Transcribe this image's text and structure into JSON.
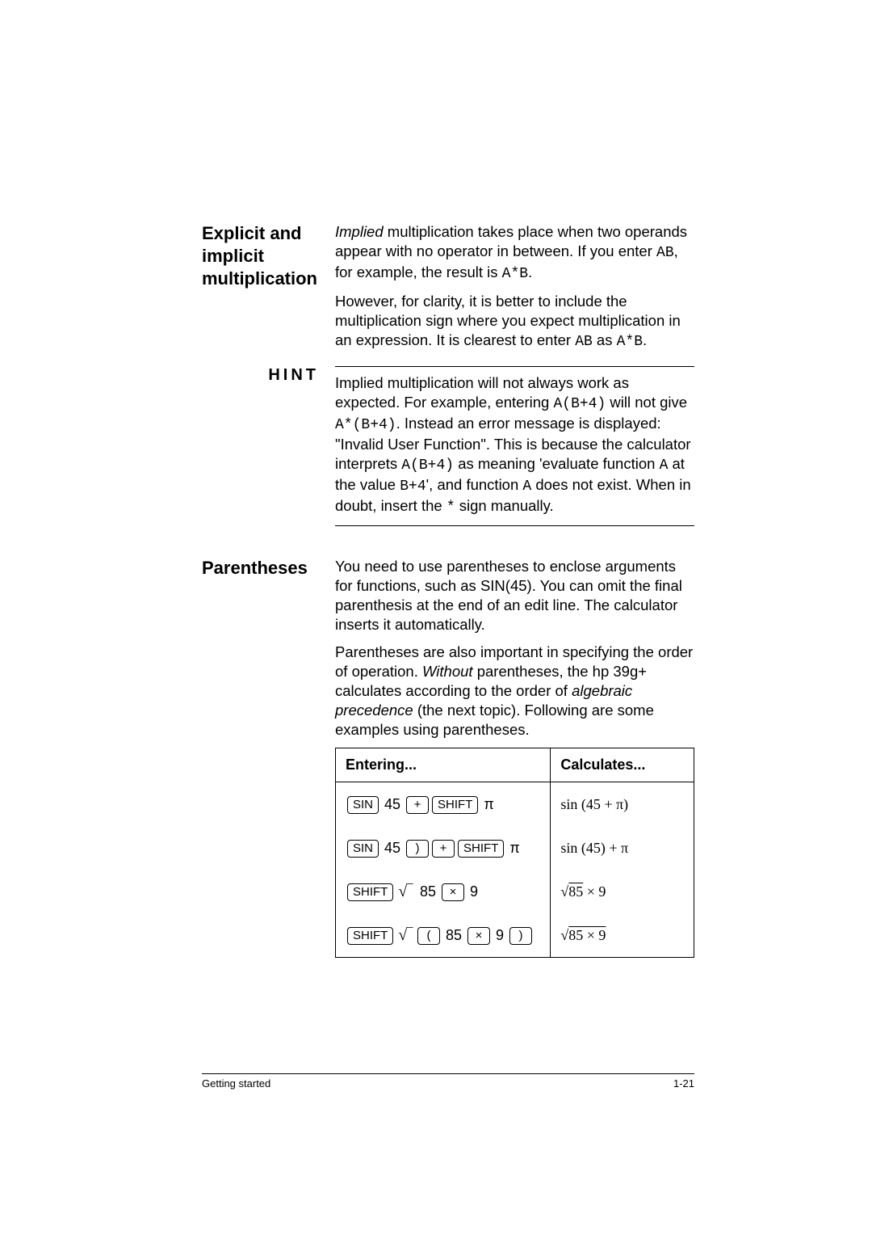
{
  "sections": {
    "explicit": {
      "sidebar": "Explicit and implicit multiplication",
      "para1_prefix_italic": "Implied",
      "para1_rest": " multiplication takes place when two operands appear with no operator in between. If you enter ",
      "para1_ab": "AB",
      "para1_tail": ", for example, the result is ",
      "para1_astarb": "A*B",
      "para1_period": ".",
      "para2_a": "However, for clarity, it is better to include the multiplication sign where you expect multiplication in an expression. It is clearest to enter ",
      "para2_ab": "AB",
      "para2_as": " as ",
      "para2_astarb": "A*B",
      "para2_period": "."
    },
    "hint": {
      "sidebar": "HINT",
      "t1": "Implied multiplication will not always work as expected. For example, entering ",
      "c1": "A(B+4)",
      "t2": " will not give ",
      "c2": "A*(B+4)",
      "t3": ". Instead an error message is displayed: \"Invalid User Function\". This is because the calculator interprets ",
      "c3": "A(B+4)",
      "t4": " as meaning 'evaluate function ",
      "c4": "A",
      "t5": " at the value ",
      "c5": "B+4",
      "t6": "', and function ",
      "c6": "A",
      "t7": " does not exist. When in doubt, insert the ",
      "c7": "*",
      "t8": " sign manually."
    },
    "paren": {
      "sidebar": "Parentheses",
      "para1": "You need to use parentheses to enclose arguments for functions, such as SIN(45). You can omit the final parenthesis at the end of an edit line. The calculator inserts it automatically.",
      "para2_a": "Parentheses are also important in specifying the order of operation. ",
      "para2_without": "Without",
      "para2_b": " parentheses, the hp 39g+ calculates according to the order of ",
      "para2_alg": "algebraic precedence",
      "para2_c": " (the next topic). Following are some examples using parentheses."
    }
  },
  "table": {
    "head_enter": "Entering...",
    "head_calc": "Calculates...",
    "rows": [
      {
        "keys": [
          "SIN",
          "45",
          "+",
          "SHIFT",
          "π"
        ],
        "keytype": [
          "cap",
          "txt",
          "cap",
          "cap",
          "txt"
        ],
        "calc_html": "sin (45 + π)"
      },
      {
        "keys": [
          "SIN",
          "45",
          ")",
          "+",
          "SHIFT",
          "π"
        ],
        "keytype": [
          "cap",
          "txt",
          "cap",
          "cap",
          "cap",
          "txt"
        ],
        "calc_html": "sin (45) + π"
      },
      {
        "keys": [
          "SHIFT",
          "√",
          "85",
          "×",
          "9"
        ],
        "keytype": [
          "cap",
          "sqrt",
          "txt",
          "cap",
          "txt"
        ],
        "calc_html": "√85 × 9"
      },
      {
        "keys": [
          "SHIFT",
          "√",
          "(",
          "85",
          "×",
          "9",
          ")"
        ],
        "keytype": [
          "cap",
          "sqrt",
          "cap",
          "txt",
          "cap",
          "txt",
          "cap"
        ],
        "calc_html": "√(85 × 9)"
      }
    ]
  },
  "footer": {
    "left": "Getting started",
    "right": "1-21"
  },
  "style": {
    "page_bg": "#ffffff",
    "text_color": "#000000",
    "border_color": "#000000"
  }
}
